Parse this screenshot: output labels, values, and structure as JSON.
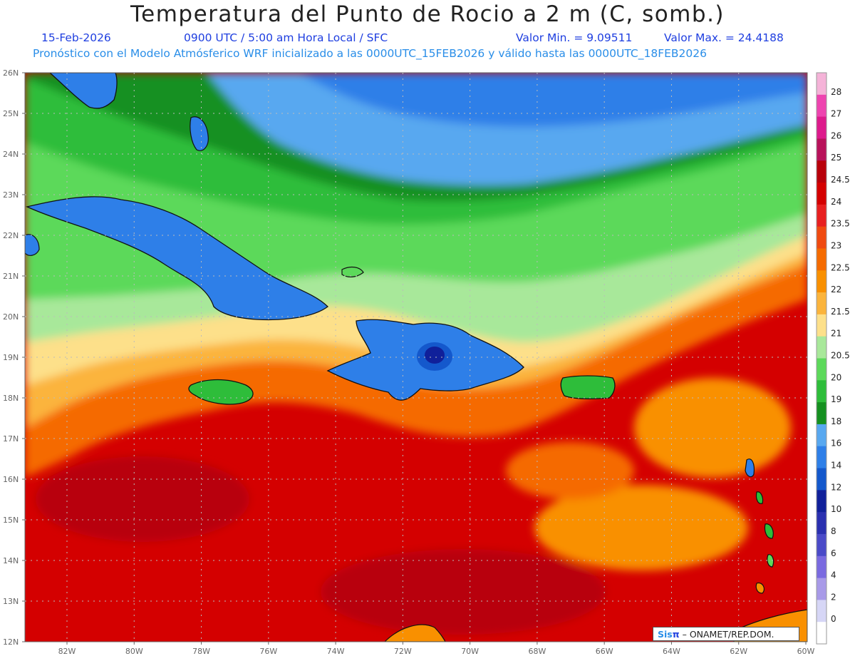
{
  "header": {
    "title": "Temperatura del Punto de Rocio a 2 m (C, somb.)",
    "date": "15-Feb-2026",
    "time": "0900 UTC / 5:00 am Hora Local / SFC",
    "min": "Valor Min. = 9.09511",
    "max": "Valor Max. = 24.4188",
    "forecast": "Pronóstico con el Modelo Atmósferico WRF inicializado a las 0000UTC_15FEB2026 y válido hasta las  0000UTC_18FEB2026"
  },
  "axes": {
    "lat_labels": [
      "26N",
      "25N",
      "24N",
      "23N",
      "22N",
      "21N",
      "20N",
      "19N",
      "18N",
      "17N",
      "16N",
      "15N",
      "14N",
      "13N",
      "12N"
    ],
    "lon_labels": [
      "82W",
      "80W",
      "78W",
      "76W",
      "74W",
      "72W",
      "70W",
      "68W",
      "66W",
      "64W",
      "62W",
      "60W"
    ]
  },
  "colorbar": {
    "levels": [
      "28",
      "27",
      "26",
      "25",
      "24.5",
      "24",
      "23.5",
      "23",
      "22.5",
      "22",
      "21.5",
      "21",
      "20.5",
      "20",
      "19",
      "18",
      "16",
      "14",
      "12",
      "10",
      "8",
      "6",
      "4",
      "2",
      "0"
    ],
    "colors": [
      "#f5b3d8",
      "#ee44b0",
      "#dd1a8c",
      "#b8125a",
      "#b8000a",
      "#d40000",
      "#e82020",
      "#f04a10",
      "#f56b00",
      "#f99000",
      "#fbb43c",
      "#fde08a",
      "#a8e89a",
      "#5cd95a",
      "#2ebd3a",
      "#159020",
      "#58a8f0",
      "#2e7fe8",
      "#1458cc",
      "#10209a",
      "#2a30b0",
      "#4a4ac8",
      "#7a6ae0",
      "#a89ae8",
      "#d6d6f6",
      "#ffffff"
    ]
  },
  "credit": {
    "sis": "Sis",
    "pi": "π",
    "rest": " – ONAMET/REP.DOM."
  }
}
